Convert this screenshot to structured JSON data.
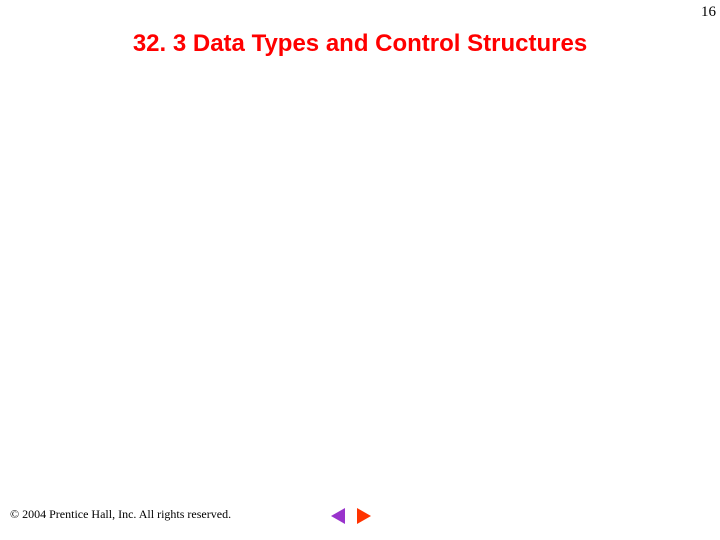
{
  "page_number": "16",
  "title": "32. 3 Data Types and Control Structures",
  "title_color": "#ff0000",
  "footer": "© 2004 Prentice Hall, Inc. All rights reserved.",
  "nav": {
    "prev_color": "#9933cc",
    "next_color": "#ff3300"
  },
  "background_color": "#ffffff"
}
